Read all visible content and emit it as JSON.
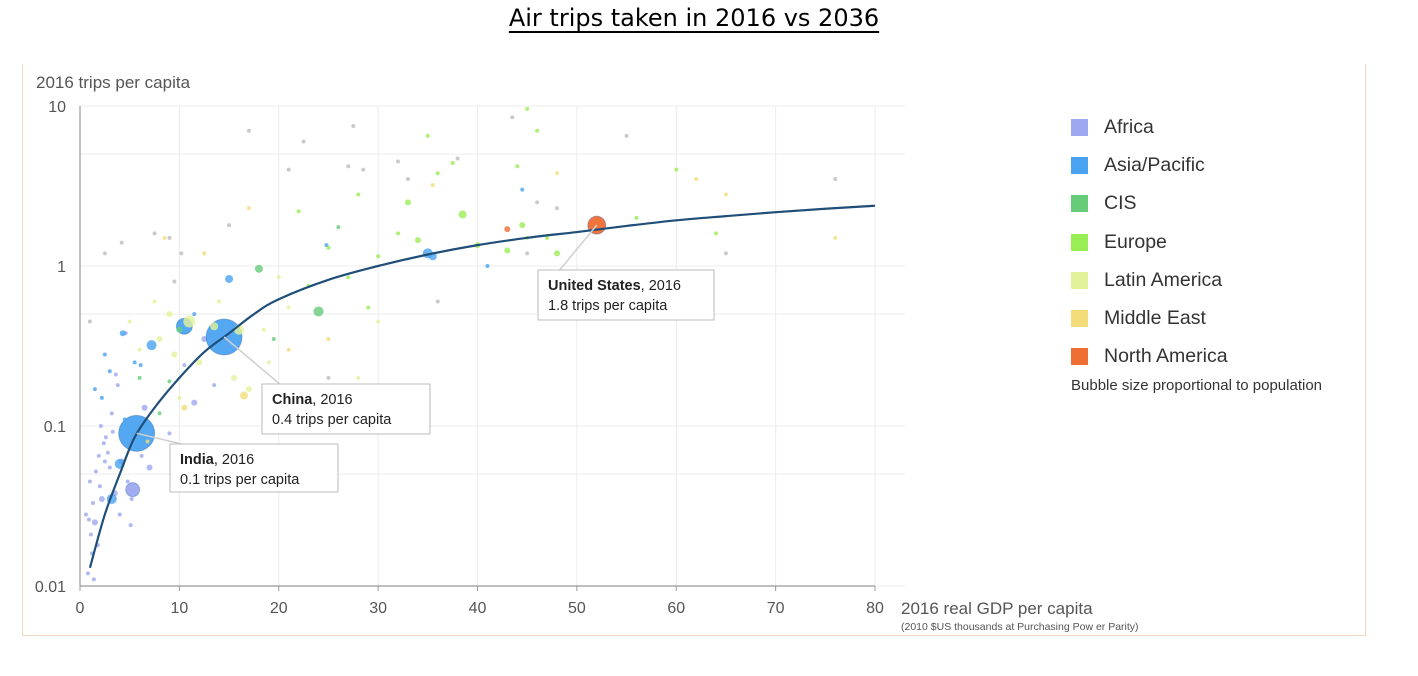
{
  "title": "Air trips taken in 2016 vs 2036",
  "legend": {
    "items": [
      {
        "label": "Africa",
        "color": "#9da8f0"
      },
      {
        "label": "Asia/Pacific",
        "color": "#4aa3f0"
      },
      {
        "label": "CIS",
        "color": "#66cc7a"
      },
      {
        "label": "Europe",
        "color": "#99ee55"
      },
      {
        "label": "Latin America",
        "color": "#e2f29a"
      },
      {
        "label": "Middle East",
        "color": "#f2dc7a"
      },
      {
        "label": "North America",
        "color": "#ee6e33"
      }
    ],
    "note": "Bubble size proportional to population"
  },
  "chart_data": {
    "type": "scatter",
    "title": "",
    "xlabel": "2016 real GDP per capita",
    "xlabel_sub": "(2010 $US thousands at Purchasing Pow er Parity)",
    "ylabel": "2016 trips per capita",
    "xlim": [
      0,
      80
    ],
    "ylim": [
      0.01,
      10
    ],
    "y_scale": "log",
    "x_ticks": [
      "0",
      "10",
      "20",
      "30",
      "40",
      "50",
      "60",
      "70",
      "80"
    ],
    "y_ticks": [
      "0.01",
      "0.1",
      "1",
      "10"
    ],
    "grid": true,
    "curve": {
      "color": "#1f4e79",
      "points": [
        [
          1.0,
          0.013
        ],
        [
          2.5,
          0.028
        ],
        [
          4.0,
          0.05
        ],
        [
          5.5,
          0.085
        ],
        [
          7.5,
          0.13
        ],
        [
          10.0,
          0.2
        ],
        [
          12.5,
          0.29
        ],
        [
          15.0,
          0.38
        ],
        [
          17.5,
          0.5
        ],
        [
          20.0,
          0.62
        ],
        [
          25.0,
          0.82
        ],
        [
          30.0,
          1.0
        ],
        [
          35.0,
          1.18
        ],
        [
          40.0,
          1.35
        ],
        [
          45.0,
          1.5
        ],
        [
          50.0,
          1.63
        ],
        [
          55.0,
          1.78
        ],
        [
          60.0,
          1.93
        ],
        [
          65.0,
          2.05
        ],
        [
          70.0,
          2.17
        ],
        [
          75.0,
          2.28
        ],
        [
          80.0,
          2.38
        ]
      ]
    },
    "callouts": [
      {
        "name": "India",
        "bold": "India",
        "rest": ", 2016",
        "line2": "0.1 trips per capita",
        "x": 5.7,
        "y": 0.09
      },
      {
        "name": "China",
        "bold": "China",
        "rest": ", 2016",
        "line2": "0.4 trips per capita",
        "x": 14.5,
        "y": 0.36
      },
      {
        "name": "United States",
        "bold": "United States",
        "rest": ", 2016",
        "line2": "1.8 trips per capita",
        "x": 52.0,
        "y": 1.8
      }
    ],
    "series": [
      {
        "name": "Africa",
        "color": "#9da8f0",
        "points": [
          [
            0.6,
            0.028,
            2
          ],
          [
            0.9,
            0.026,
            2
          ],
          [
            1.1,
            0.021,
            2
          ],
          [
            1.3,
            0.033,
            2
          ],
          [
            1.5,
            0.025,
            3
          ],
          [
            1.8,
            0.018,
            2
          ],
          [
            2.0,
            0.042,
            2
          ],
          [
            2.2,
            0.035,
            3
          ],
          [
            2.5,
            0.06,
            2
          ],
          [
            1.0,
            0.045,
            2
          ],
          [
            3.0,
            0.055,
            2
          ],
          [
            3.5,
            0.038,
            3
          ],
          [
            2.8,
            0.068,
            2
          ],
          [
            1.6,
            0.052,
            2
          ],
          [
            2.4,
            0.078,
            2
          ],
          [
            4.2,
            0.06,
            3
          ],
          [
            4.8,
            0.045,
            2
          ],
          [
            5.2,
            0.035,
            2
          ],
          [
            3.3,
            0.092,
            2
          ],
          [
            1.2,
            0.016,
            2
          ],
          [
            0.8,
            0.012,
            2
          ],
          [
            1.4,
            0.011,
            2
          ],
          [
            2.1,
            0.1,
            2
          ],
          [
            3.8,
            0.18,
            2
          ],
          [
            5.1,
            0.024,
            2
          ],
          [
            5.3,
            0.04,
            7
          ],
          [
            7.0,
            0.055,
            3
          ],
          [
            6.5,
            0.13,
            3
          ],
          [
            11.5,
            0.14,
            3
          ],
          [
            10.5,
            0.24,
            2
          ],
          [
            13.5,
            0.18,
            2
          ],
          [
            9.0,
            0.09,
            2
          ],
          [
            4.6,
            0.38,
            2
          ],
          [
            3.2,
            0.12,
            2
          ],
          [
            2.6,
            0.085,
            2
          ],
          [
            4.0,
            0.028,
            2
          ],
          [
            1.9,
            0.065,
            2
          ],
          [
            6.2,
            0.065,
            2
          ],
          [
            12.5,
            0.35,
            3
          ],
          [
            3.6,
            0.21,
            2
          ]
        ]
      },
      {
        "name": "Asia/Pacific",
        "color": "#4aa3f0",
        "points": [
          [
            5.7,
            0.09,
            18
          ],
          [
            14.5,
            0.36,
            18
          ],
          [
            4.3,
            0.38,
            3
          ],
          [
            7.2,
            0.32,
            5
          ],
          [
            10.5,
            0.42,
            8
          ],
          [
            15.0,
            0.83,
            4
          ],
          [
            3.2,
            0.035,
            5
          ],
          [
            4.0,
            0.058,
            5
          ],
          [
            35.5,
            1.15,
            4
          ],
          [
            44.5,
            3.0,
            2
          ],
          [
            24.8,
            1.35,
            2
          ],
          [
            35.0,
            1.2,
            5
          ],
          [
            11.5,
            0.5,
            2
          ],
          [
            41.0,
            1.0,
            2
          ],
          [
            2.5,
            0.28,
            2
          ],
          [
            1.5,
            0.17,
            2
          ],
          [
            3.0,
            0.22,
            2
          ],
          [
            5.5,
            0.25,
            2
          ],
          [
            6.1,
            0.24,
            2
          ],
          [
            4.5,
            0.11,
            2
          ],
          [
            2.2,
            0.15,
            2
          ]
        ]
      },
      {
        "name": "CIS",
        "color": "#66cc7a",
        "points": [
          [
            24.0,
            0.52,
            5
          ],
          [
            18.0,
            0.96,
            4
          ],
          [
            26.0,
            1.75,
            2
          ],
          [
            19.5,
            0.35,
            2
          ],
          [
            10.0,
            0.4,
            3
          ],
          [
            6.0,
            0.2,
            2
          ],
          [
            8.0,
            0.12,
            2
          ],
          [
            9.0,
            0.19,
            2
          ]
        ]
      },
      {
        "name": "Europe",
        "color": "#99ee55",
        "points": [
          [
            33.0,
            2.5,
            3
          ],
          [
            38.5,
            2.1,
            4
          ],
          [
            44.5,
            1.8,
            3
          ],
          [
            40.0,
            1.35,
            3
          ],
          [
            34.0,
            1.45,
            3
          ],
          [
            43.0,
            1.25,
            3
          ],
          [
            45.0,
            1.5,
            2
          ],
          [
            30.0,
            1.15,
            2
          ],
          [
            28.0,
            2.8,
            2
          ],
          [
            36.0,
            3.8,
            2
          ],
          [
            48.0,
            1.2,
            3
          ],
          [
            47.0,
            1.5,
            2
          ],
          [
            52.5,
            1.7,
            2
          ],
          [
            56.0,
            2.0,
            2
          ],
          [
            64.0,
            1.6,
            2
          ],
          [
            35.0,
            6.5,
            2
          ],
          [
            44.0,
            4.2,
            2
          ],
          [
            37.5,
            4.4,
            2
          ],
          [
            60.0,
            4.0,
            2
          ],
          [
            27.0,
            0.85,
            2
          ],
          [
            25.0,
            1.3,
            2
          ],
          [
            23.0,
            0.75,
            2
          ],
          [
            29.0,
            0.55,
            2
          ],
          [
            22.0,
            2.2,
            2
          ],
          [
            32.0,
            1.6,
            2
          ],
          [
            45.0,
            9.6,
            2
          ],
          [
            46.0,
            7.0,
            2
          ]
        ]
      },
      {
        "name": "Latin America",
        "color": "#e2f29a",
        "points": [
          [
            11.0,
            0.45,
            6
          ],
          [
            16.0,
            0.4,
            5
          ],
          [
            13.5,
            0.42,
            4
          ],
          [
            12.0,
            0.25,
            3
          ],
          [
            8.0,
            0.35,
            3
          ],
          [
            9.5,
            0.28,
            3
          ],
          [
            10.0,
            0.15,
            2
          ],
          [
            17.0,
            0.17,
            3
          ],
          [
            18.5,
            0.4,
            2
          ],
          [
            21.0,
            0.55,
            2
          ],
          [
            15.5,
            0.2,
            3
          ],
          [
            6.0,
            0.3,
            2
          ],
          [
            9.0,
            0.5,
            3
          ],
          [
            7.5,
            0.6,
            2
          ],
          [
            14.0,
            0.6,
            2
          ],
          [
            19.0,
            0.25,
            2
          ],
          [
            20.0,
            0.85,
            2
          ],
          [
            5.0,
            0.45,
            2
          ],
          [
            30.0,
            0.45,
            2
          ],
          [
            28.0,
            0.2,
            2
          ]
        ]
      },
      {
        "name": "Middle East",
        "color": "#f2dc7a",
        "points": [
          [
            16.5,
            0.155,
            4
          ],
          [
            10.5,
            0.13,
            3
          ],
          [
            21.0,
            0.3,
            2
          ],
          [
            17.0,
            2.3,
            2
          ],
          [
            25.0,
            0.35,
            2
          ],
          [
            62.0,
            3.5,
            2
          ],
          [
            65.0,
            2.8,
            2
          ],
          [
            76.0,
            1.5,
            2
          ],
          [
            35.5,
            3.2,
            2
          ],
          [
            48.0,
            3.8,
            2
          ],
          [
            8.5,
            1.5,
            2
          ],
          [
            12.5,
            1.2,
            2
          ],
          [
            6.8,
            0.08,
            2
          ]
        ]
      },
      {
        "name": "North America",
        "color": "#ee6e33",
        "points": [
          [
            52.0,
            1.8,
            9
          ],
          [
            43.0,
            1.7,
            3
          ]
        ]
      },
      {
        "name": "",
        "color": "#b8b8b8",
        "points": [
          [
            17.0,
            7.0,
            2
          ],
          [
            27.5,
            7.5,
            2
          ],
          [
            9.0,
            1.5,
            2
          ],
          [
            2.5,
            1.2,
            2
          ],
          [
            1.0,
            0.45,
            2
          ],
          [
            4.2,
            1.4,
            2
          ],
          [
            7.5,
            1.6,
            2
          ],
          [
            10.2,
            1.2,
            2
          ],
          [
            15.0,
            1.8,
            2
          ],
          [
            27.0,
            4.2,
            2
          ],
          [
            32.0,
            4.5,
            2
          ],
          [
            38.0,
            4.7,
            2
          ],
          [
            43.5,
            8.5,
            2
          ],
          [
            22.5,
            6.0,
            2
          ],
          [
            76.0,
            3.5,
            2
          ],
          [
            65.0,
            1.2,
            2
          ],
          [
            33.0,
            3.5,
            2
          ],
          [
            21.0,
            4.0,
            2
          ],
          [
            45.0,
            1.2,
            2
          ],
          [
            46.0,
            2.5,
            2
          ],
          [
            28.5,
            4.0,
            2
          ],
          [
            25.0,
            0.2,
            2
          ],
          [
            36.0,
            0.6,
            2
          ],
          [
            48.0,
            2.3,
            2
          ],
          [
            9.5,
            0.8,
            2
          ],
          [
            55.0,
            6.5,
            2
          ]
        ]
      }
    ]
  }
}
